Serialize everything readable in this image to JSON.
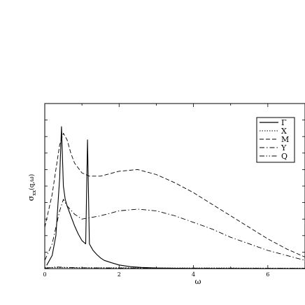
{
  "chart_data": {
    "type": "line",
    "title": "",
    "xlabel": "ω",
    "ylabel": "σxx(q,ω)",
    "ylabel_parts": {
      "base": "σ",
      "sub": "xx",
      "args": "(q,ω)"
    },
    "xlim": [
      0,
      7
    ],
    "ylim": [
      0,
      1
    ],
    "x_ticks": [
      0,
      2,
      4,
      6
    ],
    "grid": false,
    "legend_placement": "top-right",
    "series": [
      {
        "name": "Γ",
        "dash": "solid",
        "x": [
          0.05,
          0.2,
          0.3,
          0.4,
          0.45,
          0.5,
          0.55,
          0.6,
          0.7,
          0.8,
          0.9,
          1.0,
          1.1,
          1.15,
          1.2,
          1.25,
          1.3,
          1.4,
          1.5,
          1.6,
          1.8,
          2.0,
          2.3,
          2.6,
          3.0,
          3.5,
          4.0,
          5.0,
          6.0,
          7.0
        ],
        "values": [
          0.02,
          0.08,
          0.2,
          0.55,
          0.86,
          0.5,
          0.42,
          0.38,
          0.32,
          0.26,
          0.21,
          0.17,
          0.15,
          0.78,
          0.15,
          0.13,
          0.11,
          0.085,
          0.065,
          0.05,
          0.035,
          0.022,
          0.012,
          0.007,
          0.004,
          0.002,
          0.001,
          0.0008,
          0.0005,
          0.0004
        ]
      },
      {
        "name": "X",
        "dash": "dotted",
        "x": [
          0.0,
          1.0,
          2.0,
          3.0,
          4.0,
          5.0,
          6.0,
          7.0
        ],
        "values": [
          0.006,
          0.005,
          0.005,
          0.004,
          0.004,
          0.004,
          0.003,
          0.003
        ]
      },
      {
        "name": "M",
        "dash": "dashed",
        "x": [
          0.0,
          0.2,
          0.3,
          0.4,
          0.5,
          0.6,
          0.7,
          0.8,
          1.0,
          1.2,
          1.5,
          2.0,
          2.5,
          3.0,
          3.5,
          4.0,
          4.5,
          5.0,
          5.5,
          6.0,
          6.5,
          7.0
        ],
        "values": [
          0.25,
          0.45,
          0.6,
          0.75,
          0.82,
          0.78,
          0.7,
          0.64,
          0.58,
          0.56,
          0.56,
          0.59,
          0.6,
          0.57,
          0.52,
          0.46,
          0.39,
          0.32,
          0.25,
          0.18,
          0.12,
          0.07
        ]
      },
      {
        "name": "Y",
        "dash": "dash-dot",
        "x": [
          0.0,
          0.2,
          0.3,
          0.4,
          0.5,
          0.6,
          0.8,
          1.0,
          1.5,
          2.0,
          2.5,
          3.0,
          3.5,
          4.0,
          4.5,
          5.0,
          5.5,
          6.0,
          6.5,
          7.0
        ],
        "values": [
          0.05,
          0.15,
          0.25,
          0.35,
          0.42,
          0.38,
          0.33,
          0.3,
          0.32,
          0.35,
          0.36,
          0.35,
          0.32,
          0.28,
          0.24,
          0.19,
          0.15,
          0.11,
          0.08,
          0.05
        ]
      },
      {
        "name": "Q",
        "dash": "dash-dot-dot",
        "x": [
          0.0,
          0.3,
          0.5,
          1.0,
          2.0,
          3.0,
          4.0,
          5.0,
          6.0,
          7.0
        ],
        "values": [
          0.002,
          0.01,
          0.008,
          0.005,
          0.004,
          0.003,
          0.003,
          0.002,
          0.002,
          0.002
        ]
      }
    ]
  }
}
